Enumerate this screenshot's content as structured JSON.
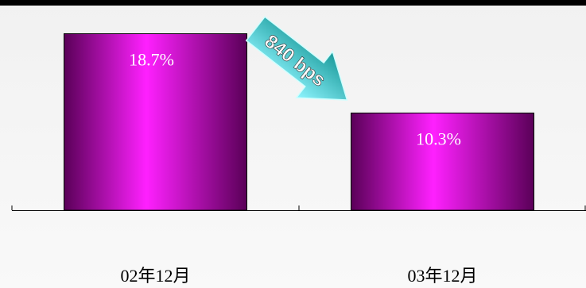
{
  "chart_data": {
    "type": "bar",
    "categories": [
      "02年12月",
      "03年12月"
    ],
    "values": [
      18.7,
      10.3
    ],
    "value_labels": [
      "18.7%",
      "10.3%"
    ],
    "ylim": [
      0,
      20
    ],
    "grid": false,
    "annotation": {
      "text": "840 bps",
      "direction": "down-right arrow"
    },
    "colors": {
      "bar_center": "#ff20ff",
      "bar_edge": "#5a0058",
      "arrow_top": "#1a9a9a",
      "arrow_bottom": "#8ff5ff"
    }
  }
}
